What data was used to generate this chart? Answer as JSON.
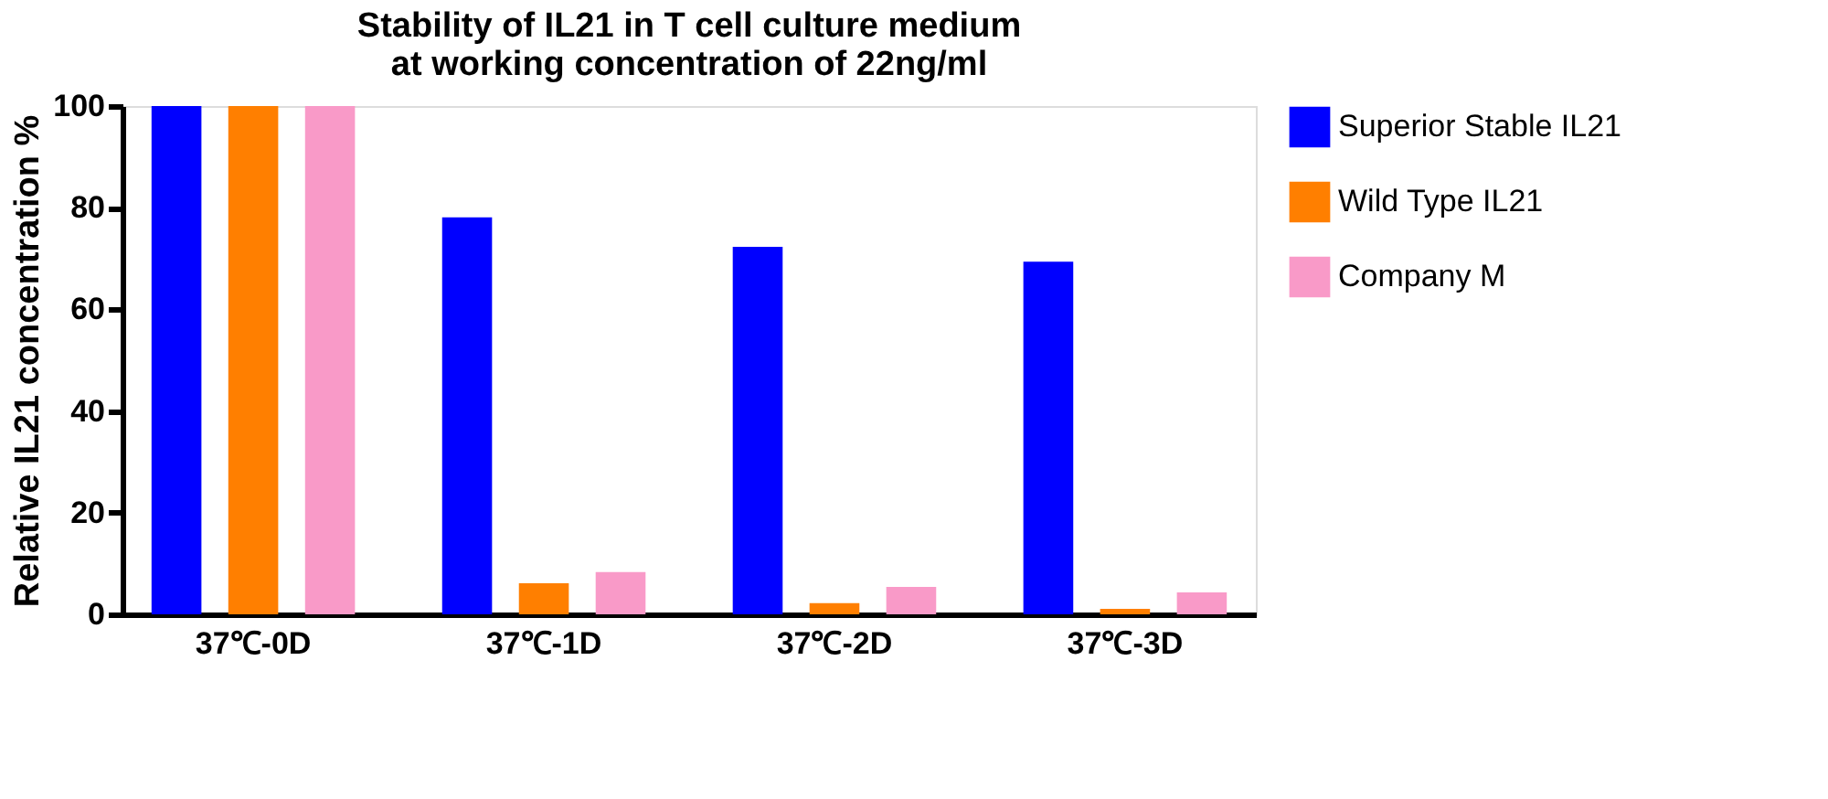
{
  "chart_data": {
    "type": "bar",
    "title": [
      "Stability of IL21 in T cell culture medium",
      "at working concentration of 22ng/ml"
    ],
    "ylabel": "Relative IL21 concentration %",
    "categories": [
      "37℃-0D",
      "37℃-1D",
      "37℃-2D",
      "37℃-3D"
    ],
    "series": [
      {
        "name": "Superior Stable IL21",
        "color": "#0000ff",
        "values": [
          100,
          78.1,
          72.3,
          69.4
        ]
      },
      {
        "name": "Wild Type IL21",
        "color": "#ff7f00",
        "values": [
          100,
          6.1,
          2.2,
          1.1
        ]
      },
      {
        "name": "Company M",
        "color": "#f99ac8",
        "values": [
          100,
          8.3,
          5.4,
          4.3
        ]
      }
    ],
    "ylim": [
      0,
      100
    ],
    "yticks": [
      0,
      20,
      40,
      60,
      80,
      100
    ],
    "grid": false,
    "legend": "right"
  }
}
